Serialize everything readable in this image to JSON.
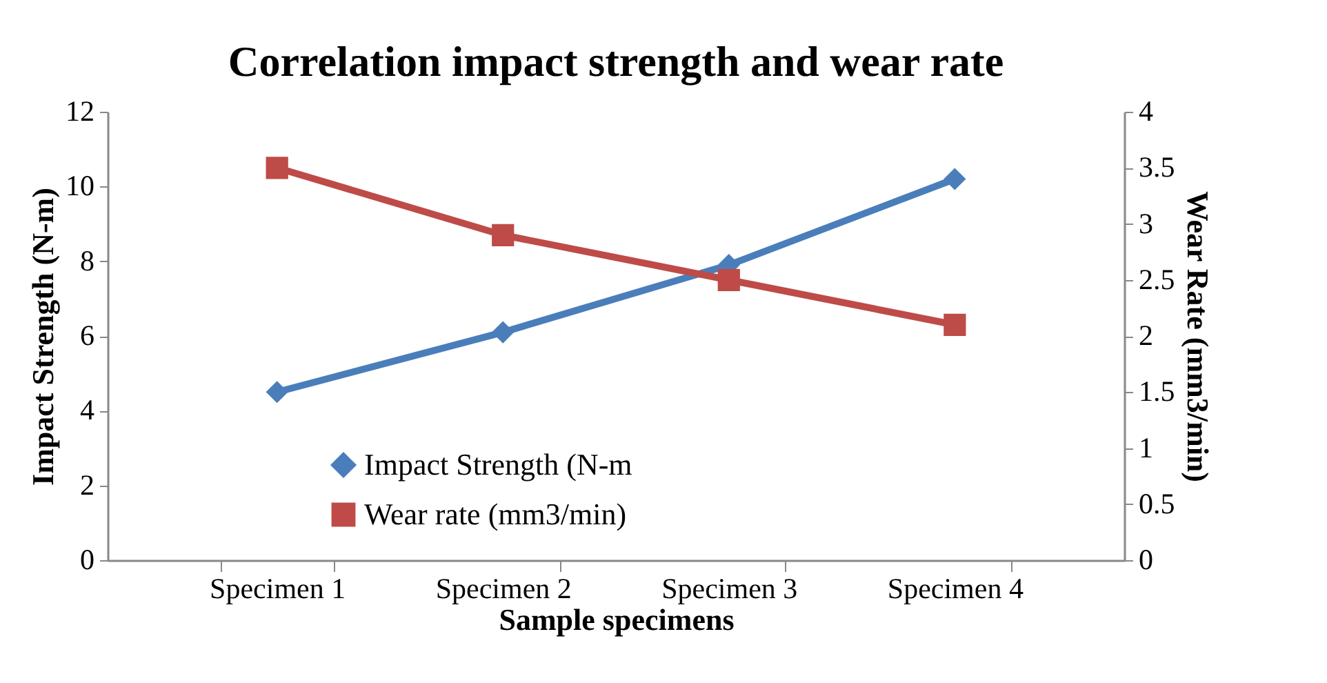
{
  "chart_data": {
    "type": "line",
    "title": "Correlation impact strength and wear rate",
    "xlabel": "Sample specimens",
    "ylabel": "Impact Strength (N-m)",
    "y2label": "Wear Rate (mm3/min)",
    "categories": [
      "Specimen 1",
      "Specimen 2",
      "Specimen 3",
      "Specimen 4"
    ],
    "series": [
      {
        "name": "Impact Strength (N-m",
        "color": "#4a7ebb",
        "marker": "diamond",
        "values": [
          4.5,
          6.1,
          7.9,
          10.2
        ]
      },
      {
        "name": "Wear rate (mm3/min)",
        "color": "#be4b48",
        "marker": "square",
        "axis": "y2",
        "values": [
          3.5,
          2.9,
          2.5,
          2.1
        ]
      }
    ],
    "ylim": [
      0,
      12
    ],
    "yticks": [
      0,
      2,
      4,
      6,
      8,
      10,
      12
    ],
    "y2lim": [
      0,
      4
    ],
    "y2ticks": [
      0,
      0.5,
      1,
      1.5,
      2,
      2.5,
      3,
      3.5,
      4
    ],
    "grid": false,
    "legend": "bottom left"
  }
}
